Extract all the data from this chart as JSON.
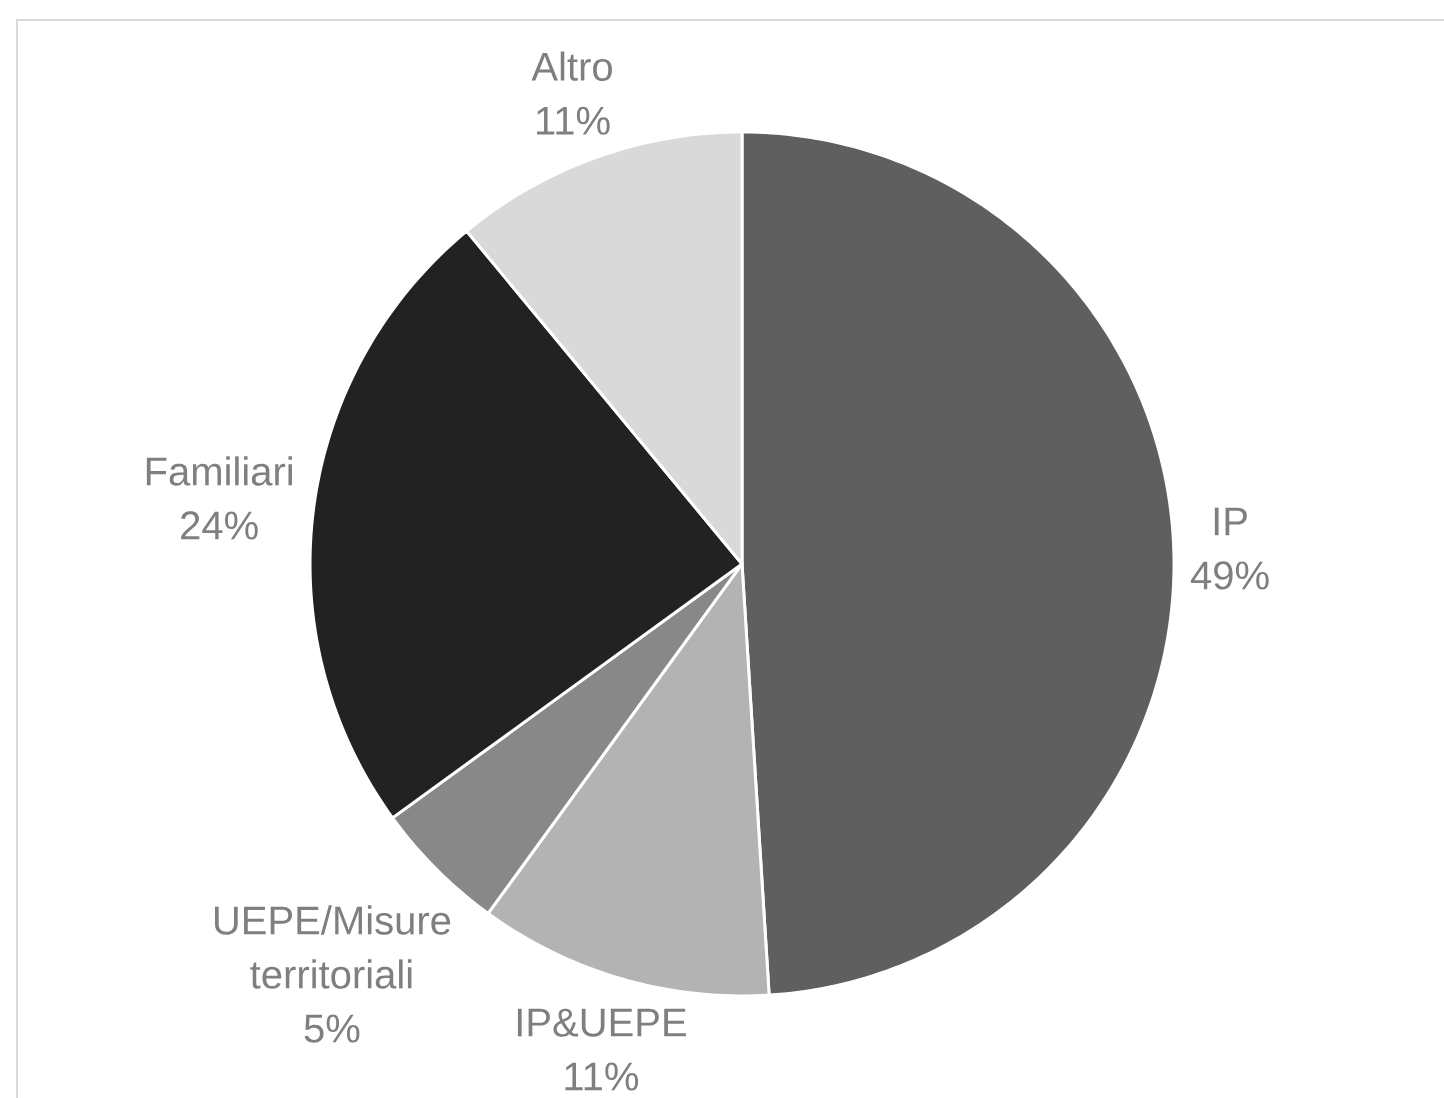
{
  "chart_data": {
    "type": "pie",
    "categories": [
      "IP",
      "IP&UEPE",
      "UEPE/Misure territoriali",
      "Familiari",
      "Altro"
    ],
    "values": [
      49,
      11,
      5,
      24,
      11
    ],
    "value_labels": [
      "49%",
      "11%",
      "5%",
      "24%",
      "11%"
    ],
    "colors": [
      "#5f5f5f",
      "#b3b3b3",
      "#888888",
      "#222222",
      "#d9d9d9"
    ]
  }
}
